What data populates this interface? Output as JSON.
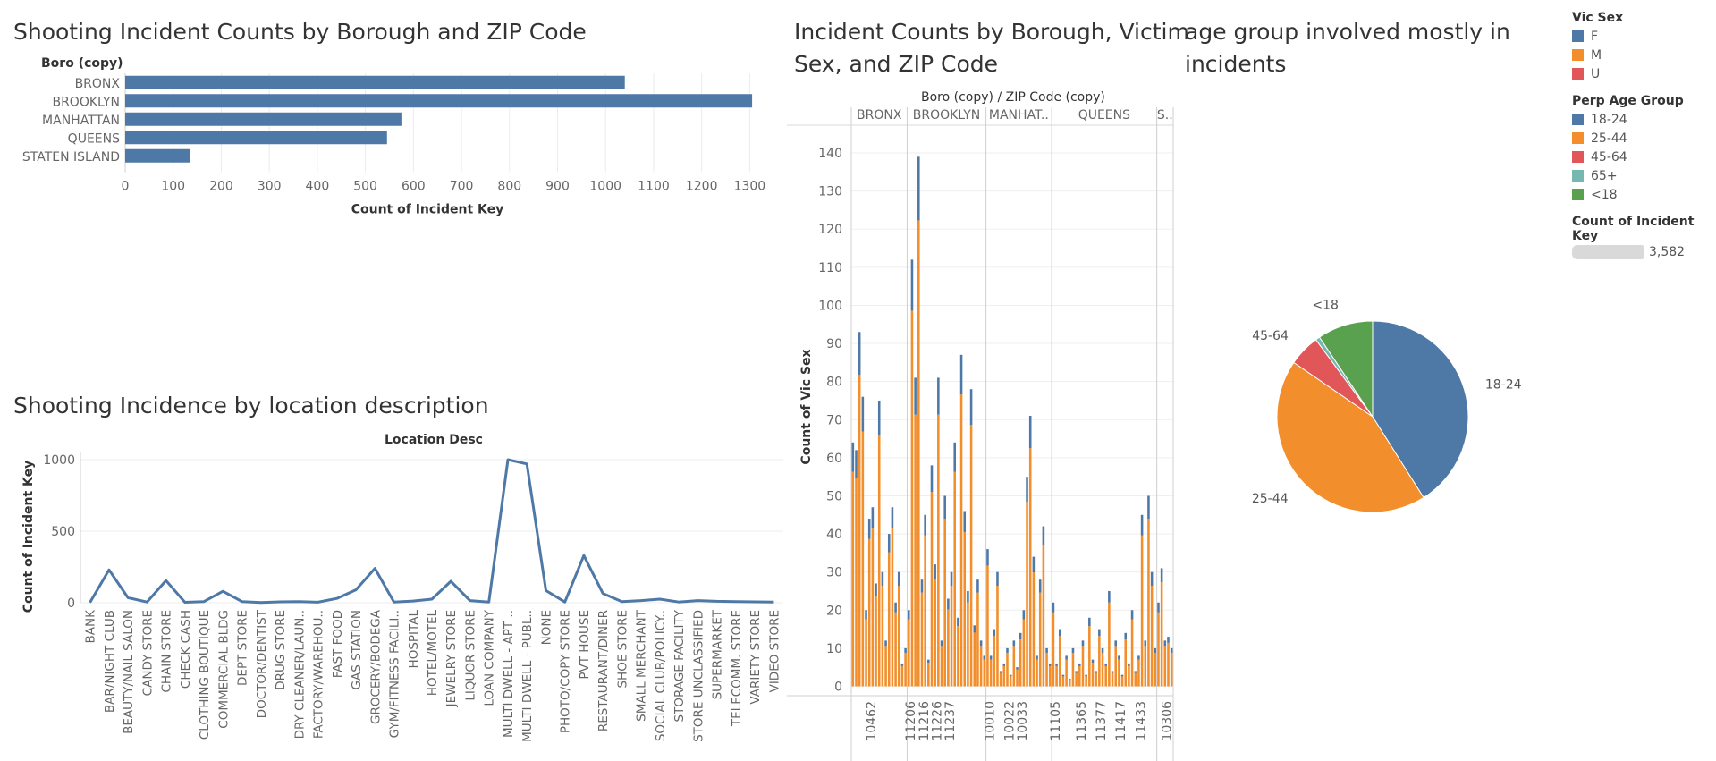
{
  "dashboard": {
    "boro_title": "Shooting Incident Counts by Borough and ZIP Code",
    "location_title": "Shooting Incidence by location description",
    "victim_title_line1": "Incident Counts by Borough, Victim",
    "victim_title_line2": "Sex, and ZIP Code",
    "age_title_line1": "age group involved mostly in",
    "age_title_line2": "incidents"
  },
  "legend": {
    "vic_sex_title": "Vic Sex",
    "vic_sex_items": [
      {
        "label": "F",
        "color": "#4e79a7"
      },
      {
        "label": "M",
        "color": "#f28e2b"
      },
      {
        "label": "U",
        "color": "#e15759"
      }
    ],
    "age_title": "Perp Age Group",
    "age_items": [
      {
        "label": "18-24",
        "color": "#4e79a7"
      },
      {
        "label": "25-44",
        "color": "#f28e2b"
      },
      {
        "label": "45-64",
        "color": "#e15759"
      },
      {
        "label": "65+",
        "color": "#76b7b2"
      },
      {
        "label": "<18",
        "color": "#59a14f"
      }
    ],
    "size_title": "Count of Incident Key",
    "size_value": "3,582"
  },
  "chart_data": [
    {
      "type": "bar",
      "orientation": "horizontal",
      "header": "Boro (copy)",
      "categories": [
        "BRONX",
        "BROOKLYN",
        "MANHATTAN",
        "QUEENS",
        "STATEN ISLAND"
      ],
      "values": [
        1040,
        1305,
        575,
        545,
        135
      ],
      "xlabel": "Count of Incident Key",
      "xticks": [
        0,
        100,
        200,
        300,
        400,
        500,
        600,
        700,
        800,
        900,
        1000,
        1100,
        1200,
        1300
      ],
      "xlim": [
        0,
        1370
      ],
      "color": "#4e79a7",
      "grid": true
    },
    {
      "type": "line",
      "header": "Location Desc",
      "ylabel": "Count of Incident Key",
      "yticks": [
        0,
        500,
        1000
      ],
      "ylim": [
        0,
        1050
      ],
      "categories": [
        "BANK",
        "BAR/NIGHT CLUB",
        "BEAUTY/NAIL SALON",
        "CANDY STORE",
        "CHAIN STORE",
        "CHECK CASH",
        "CLOTHING BOUTIQUE",
        "COMMERCIAL BLDG",
        "DEPT STORE",
        "DOCTOR/DENTIST",
        "DRUG STORE",
        "DRY CLEANER/LAUN..",
        "FACTORY/WAREHOU..",
        "FAST FOOD",
        "GAS STATION",
        "GROCERY/BODEGA",
        "GYM/FITNESS FACILI..",
        "HOSPITAL",
        "HOTEL/MOTEL",
        "JEWELRY STORE",
        "LIQUOR STORE",
        "LOAN COMPANY",
        "MULTI DWELL - APT ..",
        "MULTI DWELL - PUBL..",
        "NONE",
        "PHOTO/COPY STORE",
        "PVT HOUSE",
        "RESTAURANT/DINER",
        "SHOE STORE",
        "SMALL MERCHANT",
        "SOCIAL CLUB/POLICY..",
        "STORAGE FACILITY",
        "STORE UNCLASSIFIED",
        "SUPERMARKET",
        "TELECOMM. STORE",
        "VARIETY STORE",
        "VIDEO STORE"
      ],
      "values": [
        2,
        230,
        35,
        5,
        155,
        3,
        8,
        80,
        8,
        2,
        6,
        8,
        4,
        30,
        90,
        240,
        5,
        12,
        25,
        150,
        15,
        5,
        1000,
        970,
        85,
        5,
        330,
        65,
        8,
        15,
        25,
        5,
        15,
        10,
        8,
        6,
        5
      ],
      "color": "#4e79a7",
      "grid": true
    },
    {
      "type": "bar",
      "stacked": true,
      "header": "Boro (copy)  /  ZIP Code (copy)",
      "panels": [
        "BRONX",
        "BROOKLYN",
        "MANHAT..",
        "QUEENS",
        "S.."
      ],
      "ylabel": "Count of Vic Sex",
      "yticks": [
        0,
        10,
        20,
        30,
        40,
        50,
        60,
        70,
        80,
        90,
        100,
        110,
        120,
        130,
        140
      ],
      "ylim": [
        -2,
        144
      ],
      "xtick_labels": [
        "10462",
        "11206",
        "11216",
        "11226",
        "11237",
        "10010",
        "10022",
        "10033",
        "11105",
        "11365",
        "11377",
        "11417",
        "11433",
        "10306"
      ],
      "series": [
        {
          "name": "F",
          "color": "#4e79a7"
        },
        {
          "name": "M",
          "color": "#f28e2b"
        }
      ],
      "bars_per_panel": [
        17,
        24,
        20,
        32,
        5
      ],
      "totals": [
        [
          64,
          62,
          93,
          76,
          20,
          44,
          47,
          27,
          75,
          30,
          12,
          40,
          47,
          22,
          30,
          6,
          10
        ],
        [
          20,
          112,
          81,
          139,
          28,
          45,
          7,
          58,
          32,
          81,
          12,
          50,
          23,
          30,
          64,
          18,
          87,
          46,
          25,
          78,
          16,
          28,
          12,
          8
        ],
        [
          36,
          8,
          15,
          30,
          4,
          6,
          10,
          3,
          12,
          5,
          14,
          20,
          55,
          71,
          34,
          8,
          28,
          42,
          10,
          6
        ],
        [
          22,
          6,
          15,
          3,
          8,
          2,
          10,
          4,
          6,
          12,
          3,
          18,
          7,
          4,
          15,
          10,
          6,
          25,
          4,
          12,
          8,
          3,
          14,
          6,
          20,
          4,
          8,
          45,
          12,
          50,
          30,
          10
        ],
        [
          22,
          31,
          12,
          13,
          10
        ]
      ],
      "female_share": 0.12
    },
    {
      "type": "pie",
      "labels": [
        "18-24",
        "25-44",
        "45-64",
        "65+",
        "<18"
      ],
      "values": [
        1470,
        1560,
        190,
        26,
        336
      ],
      "colors": [
        "#4e79a7",
        "#f28e2b",
        "#e15759",
        "#76b7b2",
        "#59a14f"
      ]
    }
  ]
}
